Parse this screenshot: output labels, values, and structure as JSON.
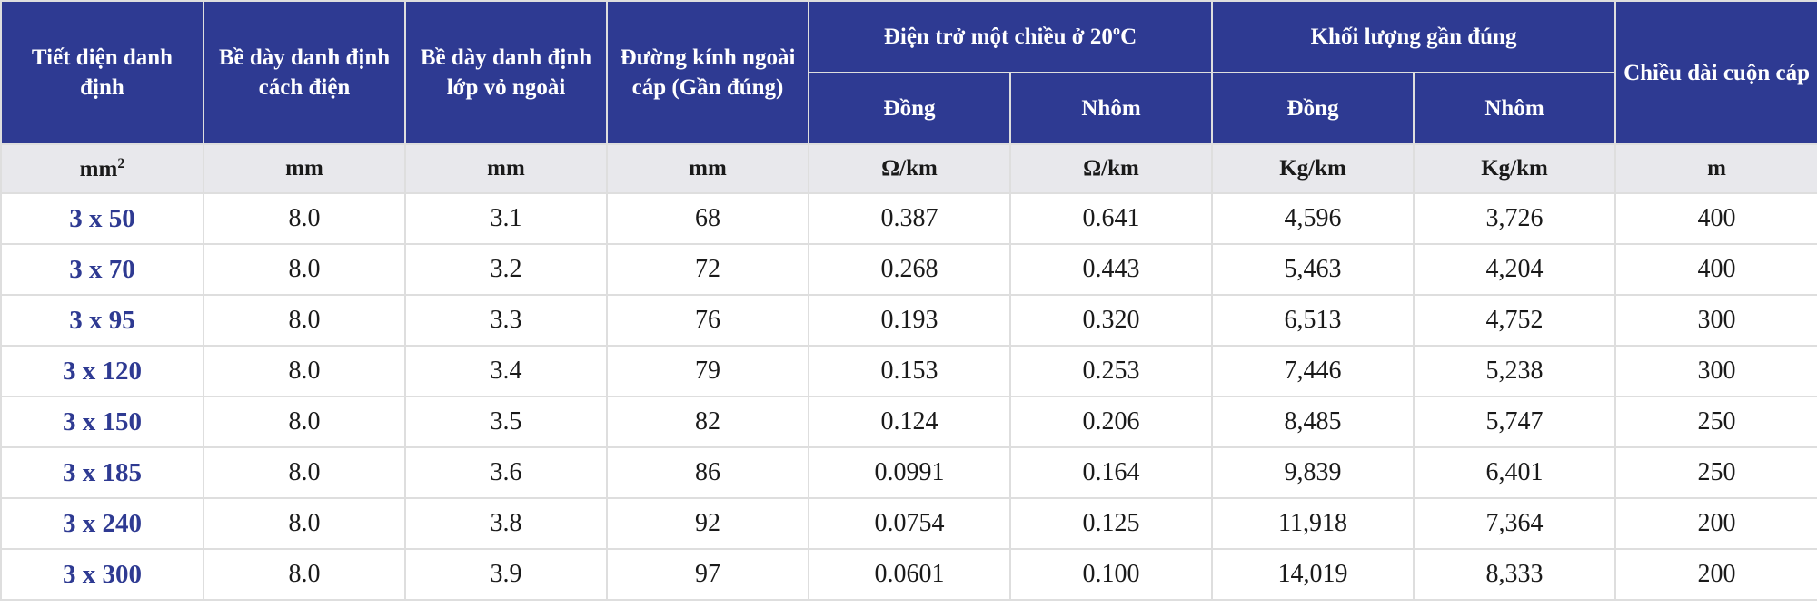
{
  "header": {
    "cross_section": "Tiết diện danh định",
    "insulation_thickness": "Bề dày danh định cách điện",
    "sheath_thickness": "Bề dày danh định lớp vỏ ngoài",
    "outer_diameter": "Đường kính ngoài cáp (Gần đúng)",
    "dc_resistance_group": "Điện trở một chiều ở 20ºC",
    "approx_weight_group": "Khối lượng gần đúng",
    "drum_length": "Chiều dài cuộn cáp",
    "copper": "Đồng",
    "aluminium": "Nhôm"
  },
  "units": {
    "cross_section_base": "mm",
    "cross_section_exp": "2",
    "insulation": "mm",
    "sheath": "mm",
    "diameter": "mm",
    "res_cu": "Ω/km",
    "res_al": "Ω/km",
    "wt_cu": "Kg/km",
    "wt_al": "Kg/km",
    "length": "m"
  },
  "rows": [
    {
      "size": "3 x 50",
      "insulation": "8.0",
      "sheath": "3.1",
      "diameter": "68",
      "res_cu": "0.387",
      "res_al": "0.641",
      "wt_cu": "4,596",
      "wt_al": "3,726",
      "length": "400"
    },
    {
      "size": "3 x 70",
      "insulation": "8.0",
      "sheath": "3.2",
      "diameter": "72",
      "res_cu": "0.268",
      "res_al": "0.443",
      "wt_cu": "5,463",
      "wt_al": "4,204",
      "length": "400"
    },
    {
      "size": "3 x 95",
      "insulation": "8.0",
      "sheath": "3.3",
      "diameter": "76",
      "res_cu": "0.193",
      "res_al": "0.320",
      "wt_cu": "6,513",
      "wt_al": "4,752",
      "length": "300"
    },
    {
      "size": "3 x 120",
      "insulation": "8.0",
      "sheath": "3.4",
      "diameter": "79",
      "res_cu": "0.153",
      "res_al": "0.253",
      "wt_cu": "7,446",
      "wt_al": "5,238",
      "length": "300"
    },
    {
      "size": "3 x 150",
      "insulation": "8.0",
      "sheath": "3.5",
      "diameter": "82",
      "res_cu": "0.124",
      "res_al": "0.206",
      "wt_cu": "8,485",
      "wt_al": "5,747",
      "length": "250"
    },
    {
      "size": "3 x 185",
      "insulation": "8.0",
      "sheath": "3.6",
      "diameter": "86",
      "res_cu": "0.0991",
      "res_al": "0.164",
      "wt_cu": "9,839",
      "wt_al": "6,401",
      "length": "250"
    },
    {
      "size": "3 x 240",
      "insulation": "8.0",
      "sheath": "3.8",
      "diameter": "92",
      "res_cu": "0.0754",
      "res_al": "0.125",
      "wt_cu": "11,918",
      "wt_al": "7,364",
      "length": "200"
    },
    {
      "size": "3 x 300",
      "insulation": "8.0",
      "sheath": "3.9",
      "diameter": "97",
      "res_cu": "0.0601",
      "res_al": "0.100",
      "wt_cu": "14,019",
      "wt_al": "8,333",
      "length": "200"
    }
  ],
  "colors": {
    "header_bg": "#2e3a92",
    "header_text": "#ffffff",
    "units_bg": "#e8e8ec",
    "size_text": "#2e3a92"
  }
}
